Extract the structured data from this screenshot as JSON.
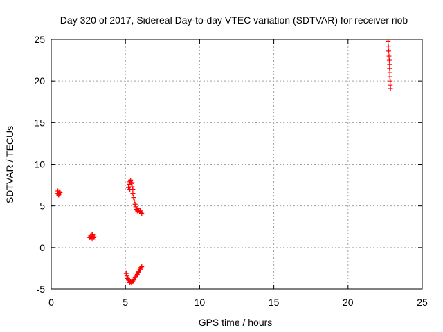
{
  "chart_data": {
    "type": "scatter",
    "title": "Day 320 of 2017, Sidereal Day-to-day VTEC variation (SDTVAR) for receiver riob",
    "xlabel": "GPS time / hours",
    "ylabel": "SDTVAR / TECUs",
    "xlim": [
      0,
      25
    ],
    "ylim": [
      -5,
      25
    ],
    "xticks": [
      "0",
      "5",
      "10",
      "15",
      "20",
      "25"
    ],
    "yticks": [
      "-5",
      "0",
      "5",
      "10",
      "15",
      "20",
      "25"
    ],
    "grid": true,
    "legend": "none",
    "marker": "plus",
    "color": "#ff0000",
    "series": [
      {
        "points": [
          [
            0.45,
            6.8
          ],
          [
            0.5,
            6.5
          ],
          [
            0.55,
            6.7
          ],
          [
            0.5,
            6.3
          ],
          [
            0.6,
            6.6
          ],
          [
            0.45,
            6.5
          ],
          [
            0.55,
            6.4
          ],
          [
            2.6,
            1.2
          ],
          [
            2.65,
            1.4
          ],
          [
            2.7,
            1.1
          ],
          [
            2.75,
            1.3
          ],
          [
            2.8,
            1.5
          ],
          [
            2.85,
            1.2
          ],
          [
            2.7,
            1.0
          ],
          [
            2.9,
            1.3
          ],
          [
            2.75,
            1.6
          ],
          [
            2.8,
            1.0
          ],
          [
            5.05,
            -3.1
          ],
          [
            5.1,
            -3.4
          ],
          [
            5.15,
            -3.7
          ],
          [
            5.2,
            -3.9
          ],
          [
            5.25,
            -4.1
          ],
          [
            5.3,
            -4.2
          ],
          [
            5.35,
            -4.1
          ],
          [
            5.4,
            -4.2
          ],
          [
            5.45,
            -4.0
          ],
          [
            5.5,
            -4.1
          ],
          [
            5.55,
            -3.9
          ],
          [
            5.6,
            -3.8
          ],
          [
            5.65,
            -3.6
          ],
          [
            5.7,
            -3.5
          ],
          [
            5.75,
            -3.3
          ],
          [
            5.8,
            -3.2
          ],
          [
            5.85,
            -3.0
          ],
          [
            5.9,
            -2.9
          ],
          [
            5.95,
            -2.7
          ],
          [
            6.0,
            -2.6
          ],
          [
            6.05,
            -2.4
          ],
          [
            6.1,
            -2.3
          ],
          [
            5.2,
            7.2
          ],
          [
            5.25,
            7.6
          ],
          [
            5.3,
            7.9
          ],
          [
            5.35,
            8.1
          ],
          [
            5.4,
            7.7
          ],
          [
            5.45,
            7.3
          ],
          [
            5.5,
            7.0
          ],
          [
            5.5,
            6.5
          ],
          [
            5.55,
            6.0
          ],
          [
            5.6,
            5.6
          ],
          [
            5.65,
            5.2
          ],
          [
            5.7,
            4.9
          ],
          [
            5.75,
            4.6
          ],
          [
            5.8,
            4.4
          ],
          [
            5.85,
            4.7
          ],
          [
            5.9,
            4.5
          ],
          [
            5.95,
            4.3
          ],
          [
            6.0,
            4.4
          ],
          [
            6.05,
            4.2
          ],
          [
            6.1,
            4.1
          ],
          [
            5.3,
            7.0
          ],
          [
            5.45,
            7.8
          ],
          [
            22.7,
            24.8
          ],
          [
            22.72,
            24.2
          ],
          [
            22.74,
            23.6
          ],
          [
            22.76,
            23.0
          ],
          [
            22.78,
            22.5
          ],
          [
            22.8,
            22.0
          ],
          [
            22.8,
            21.5
          ],
          [
            22.82,
            21.0
          ],
          [
            22.82,
            20.5
          ],
          [
            22.84,
            20.0
          ],
          [
            22.84,
            19.5
          ],
          [
            22.86,
            19.1
          ]
        ]
      }
    ]
  }
}
